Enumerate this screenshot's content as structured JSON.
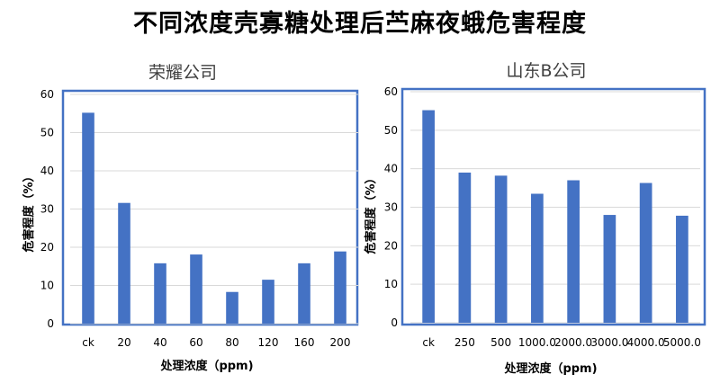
{
  "main_title": "不同浓度壳寡糖处理后苎麻夜蛾危害程度",
  "chart_data": [
    {
      "type": "bar",
      "title": "荣耀公司",
      "xlabel": "处理浓度（ppm)",
      "ylabel": "危害程度（%）",
      "categories": [
        "ck",
        "20",
        "40",
        "60",
        "80",
        "120",
        "160",
        "200"
      ],
      "values": [
        55.2,
        31.6,
        15.8,
        18.1,
        8.3,
        11.5,
        15.8,
        18.9
      ],
      "ylim": [
        0,
        60
      ],
      "yticks": [
        0,
        10,
        20,
        30,
        40,
        50,
        60
      ],
      "grid": true,
      "bar_color": "#4472c4",
      "border_color": "#4472c4"
    },
    {
      "type": "bar",
      "title": "山东B公司",
      "xlabel": "处理浓度（ppm)",
      "ylabel": "危害程度（%）",
      "categories": [
        "ck",
        "250",
        "500",
        "1000.0",
        "2000.0",
        "3000.0",
        "4000.0",
        "5000.0"
      ],
      "values": [
        55.2,
        39.0,
        38.2,
        33.5,
        37.0,
        28.0,
        36.3,
        27.8
      ],
      "ylim": [
        0,
        60
      ],
      "yticks": [
        0,
        10,
        20,
        30,
        40,
        50,
        60
      ],
      "grid": true,
      "bar_color": "#4472c4",
      "border_color": "#4472c4"
    }
  ]
}
